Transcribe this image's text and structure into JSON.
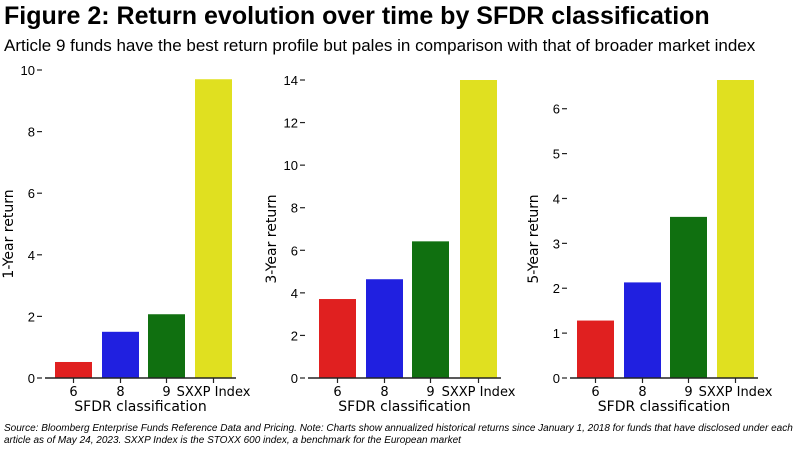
{
  "title": "Figure 2: Return evolution over time by SFDR classification",
  "subtitle": "Article 9 funds have the best return profile but pales in comparison with that of broader market index",
  "footnote": "Source: Bloomberg Enterprise Funds Reference Data and Pricing. Note: Charts show annualized historical returns since January 1, 2018 for funds that have disclosed under each article as of May 24, 2023. SXXP Index is the STOXX 600 index, a benchmark for the European market",
  "colors": [
    "#e02020",
    "#2020e0",
    "#107010",
    "#e0e020"
  ],
  "chart_data": [
    {
      "type": "bar",
      "categories": [
        "6",
        "8",
        "9",
        "SXXP Index"
      ],
      "values": [
        0.52,
        1.5,
        2.07,
        9.7
      ],
      "xlabel": "SFDR classification",
      "ylabel": "1-Year return",
      "ylim": [
        0,
        10
      ],
      "yticks": [
        0,
        2,
        4,
        6,
        8,
        10
      ],
      "grid": false
    },
    {
      "type": "bar",
      "categories": [
        "6",
        "8",
        "9",
        "SXXP Index"
      ],
      "values": [
        3.71,
        4.64,
        6.42,
        14.0
      ],
      "xlabel": "SFDR classification",
      "ylabel": "3-Year return",
      "ylim": [
        0,
        14
      ],
      "yticks": [
        0,
        2,
        4,
        6,
        8,
        10,
        12,
        14
      ],
      "grid": false
    },
    {
      "type": "bar",
      "categories": [
        "6",
        "8",
        "9",
        "SXXP Index"
      ],
      "values": [
        1.28,
        2.13,
        3.59,
        6.64
      ],
      "xlabel": "SFDR classification",
      "ylabel": "5-Year return",
      "ylim": [
        0,
        6.64
      ],
      "yticks": [
        0,
        1,
        2,
        3,
        4,
        5,
        6
      ],
      "grid": false
    }
  ]
}
